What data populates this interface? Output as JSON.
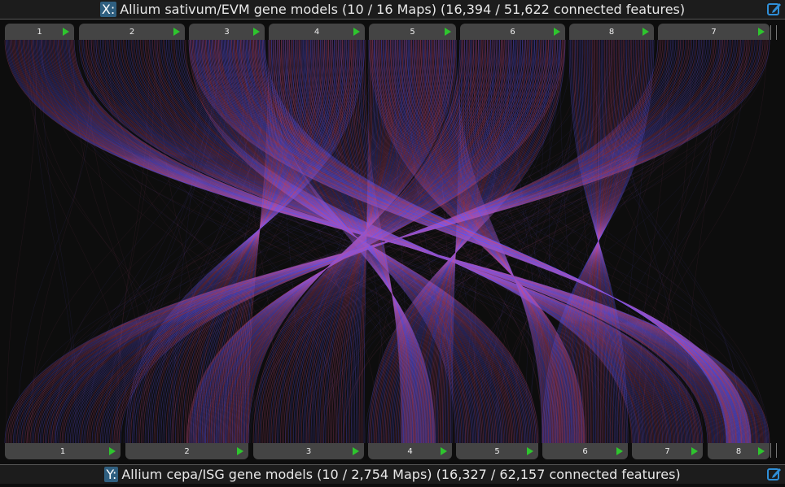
{
  "x_axis": {
    "badge": "X:",
    "title": "Allium sativum/EVM gene models (10 / 16 Maps) (16,394 / 51,622 connected features)"
  },
  "y_axis": {
    "badge": "Y:",
    "title": "Allium cepa/ISG gene models (10 / 2,754 Maps) (16,327 / 62,157 connected features)"
  },
  "top_maps": [
    "1",
    "2",
    "3",
    "4",
    "5",
    "6",
    "8",
    "7"
  ],
  "bottom_maps": [
    "1",
    "2",
    "3",
    "4",
    "5",
    "6",
    "7",
    "8"
  ],
  "colors": {
    "link_blue": "#6a5cff",
    "link_red": "#d0508a",
    "play": "#2ec52e",
    "edit": "#2f8fd8"
  },
  "icons": {
    "edit": "edit-icon",
    "play": "play-icon"
  }
}
